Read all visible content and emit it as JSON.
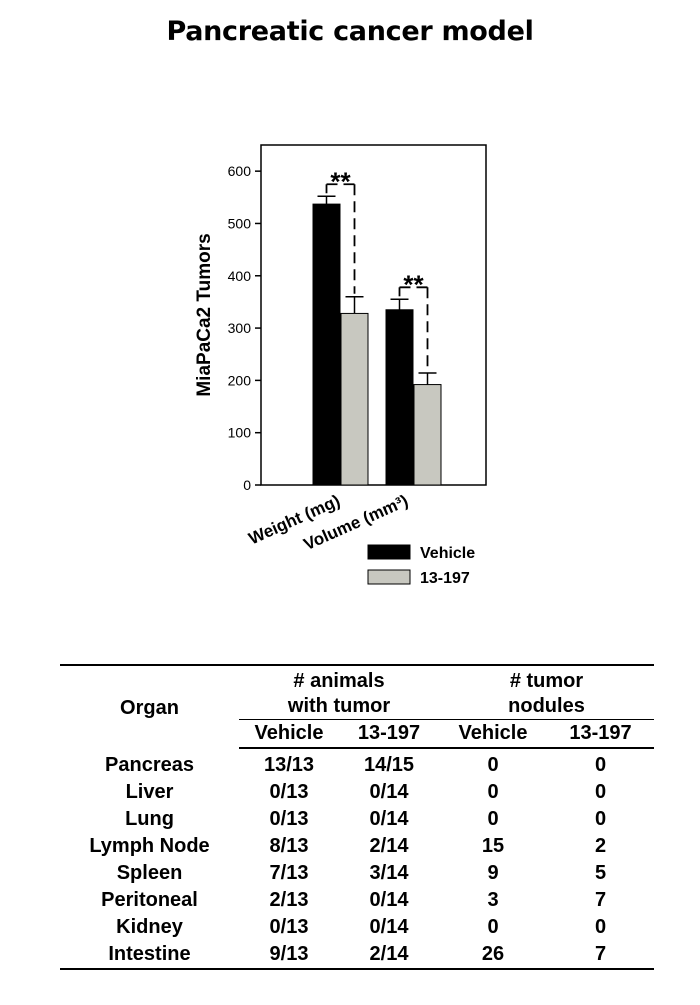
{
  "title": "Pancreatic cancer model",
  "chart_data": {
    "type": "bar",
    "ylabel": "MiaPaCa2 Tumors",
    "xlabel": "",
    "ylim": [
      0,
      650
    ],
    "yticks": [
      0,
      100,
      200,
      300,
      400,
      500,
      600
    ],
    "categories": [
      "Weight (mg)",
      "Volume (mm³)"
    ],
    "series": [
      {
        "name": "Vehicle",
        "values": [
          537,
          335
        ],
        "errors": [
          15,
          20
        ],
        "color": "#000000"
      },
      {
        "name": "13-197",
        "values": [
          328,
          192
        ],
        "errors": [
          32,
          22
        ],
        "color": "#c8c8c0"
      }
    ],
    "annotations": [
      {
        "category": "Weight (mg)",
        "text": "**"
      },
      {
        "category": "Volume (mm³)",
        "text": "**"
      }
    ],
    "legend": "bottom-right",
    "grid": false
  },
  "table": {
    "organ_header": "Organ",
    "group1_header": "# animals with tumor",
    "group2_header": "# tumor nodules",
    "sub_headers": [
      "Vehicle",
      "13-197",
      "Vehicle",
      "13-197"
    ],
    "rows": [
      {
        "organ": "Pancreas",
        "cells": [
          "13/13",
          "14/15",
          "0",
          "0"
        ]
      },
      {
        "organ": "Liver",
        "cells": [
          "0/13",
          "0/14",
          "0",
          "0"
        ]
      },
      {
        "organ": "Lung",
        "cells": [
          "0/13",
          "0/14",
          "0",
          "0"
        ]
      },
      {
        "organ": "Lymph Node",
        "cells": [
          "8/13",
          "2/14",
          "15",
          "2"
        ]
      },
      {
        "organ": "Spleen",
        "cells": [
          "7/13",
          "3/14",
          "9",
          "5"
        ]
      },
      {
        "organ": "Peritoneal",
        "cells": [
          "2/13",
          "0/14",
          "3",
          "7"
        ]
      },
      {
        "organ": "Kidney",
        "cells": [
          "0/13",
          "0/14",
          "0",
          "0"
        ]
      },
      {
        "organ": "Intestine",
        "cells": [
          "9/13",
          "2/14",
          "26",
          "7"
        ]
      }
    ]
  }
}
